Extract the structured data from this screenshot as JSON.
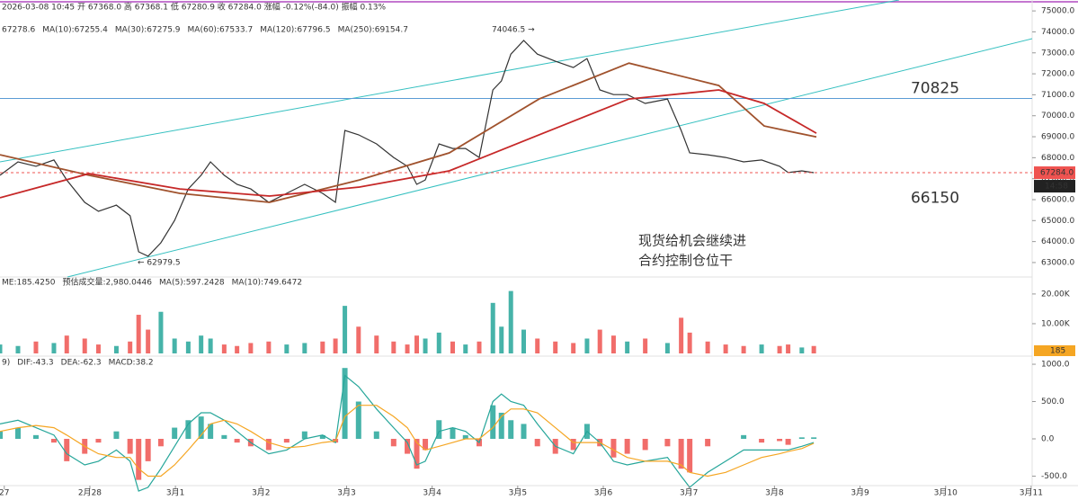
{
  "chart_data": [
    {
      "type": "line",
      "info": "2026-03-08 10:45  开 67368.0  高 67368.1  低 67280.9  收 67284.0  涨幅 -0.12%(-84.0)  振幅 0.13%",
      "legend": [
        {
          "text": "67278.6",
          "color": "#b0413e"
        },
        {
          "text": "MA(10):67255.4",
          "color": "#b0413e"
        },
        {
          "text": "MA(30):67275.9",
          "color": "#e58fb8"
        },
        {
          "text": "MA(60):67533.7",
          "color": "#3fb8c9"
        },
        {
          "text": "MA(120):67796.5",
          "color": "#a0522d"
        },
        {
          "text": "MA(250):69154.7",
          "color": "#c62828"
        }
      ],
      "xlim": [
        -0.05,
        11.98
      ],
      "ylim": [
        62440,
        75520
      ],
      "yticks": [
        {
          "value": 63000,
          "label": "63000.0"
        },
        {
          "value": 64000,
          "label": "64000.0"
        },
        {
          "value": 65000,
          "label": "65000.0"
        },
        {
          "value": 66000,
          "label": "66000.0"
        },
        {
          "value": 67000,
          "label": "67000.0"
        },
        {
          "value": 68000,
          "label": "68000.0"
        },
        {
          "value": 69000,
          "label": "69000.0"
        },
        {
          "value": 70000,
          "label": "70000.0"
        },
        {
          "value": 71000,
          "label": "71000.0"
        },
        {
          "value": 72000,
          "label": "72000.0"
        },
        {
          "value": 73000,
          "label": "73000.0"
        },
        {
          "value": 74000,
          "label": "74000.0"
        },
        {
          "value": 75000,
          "label": "75000.0"
        }
      ],
      "series": [
        {
          "name": "price",
          "color": "#333333",
          "x": [
            -0.05,
            0.16,
            0.37,
            0.58,
            0.73,
            0.94,
            1.1,
            1.31,
            1.47,
            1.57,
            1.68,
            1.83,
            1.99,
            2.15,
            2.3,
            2.41,
            2.57,
            2.72,
            2.88,
            3.09,
            3.3,
            3.51,
            3.72,
            3.87,
            3.98,
            4.14,
            4.35,
            4.55,
            4.71,
            4.82,
            4.92,
            5.08,
            5.24,
            5.39,
            5.55,
            5.71,
            5.81,
            5.92,
            6.07,
            6.23,
            6.44,
            6.65,
            6.81,
            6.96,
            7.12,
            7.28,
            7.49,
            7.75,
            7.91,
            8.01,
            8.22,
            8.43,
            8.64,
            8.85,
            9.06,
            9.16,
            9.32,
            9.46
          ],
          "values": [
            67160,
            67800,
            67590,
            67890,
            66940,
            65870,
            65440,
            65740,
            65230,
            63510,
            63300,
            63940,
            65010,
            66510,
            67160,
            67800,
            67160,
            66730,
            66510,
            65870,
            66300,
            66730,
            66300,
            65870,
            69300,
            69090,
            68660,
            68010,
            67590,
            66730,
            66940,
            68660,
            68440,
            68440,
            68010,
            71230,
            71660,
            72940,
            73590,
            72940,
            72600,
            72300,
            72730,
            71230,
            71010,
            71010,
            70590,
            70800,
            69300,
            68230,
            68140,
            68010,
            67800,
            67890,
            67590,
            67290,
            67370,
            67284
          ]
        },
        {
          "name": "MA(120)",
          "color": "#a0522d",
          "x": [
            -0.05,
            0.99,
            2.05,
            3.1,
            4.15,
            5.2,
            6.25,
            7.3,
            8.35,
            8.88,
            9.49
          ],
          "values": [
            68140,
            67160,
            66300,
            65870,
            66940,
            68230,
            70800,
            72510,
            71440,
            69510,
            68990
          ]
        },
        {
          "name": "MA(250)",
          "color": "#c62828",
          "x": [
            -0.05,
            0.99,
            2.05,
            3.1,
            4.15,
            5.2,
            6.25,
            7.3,
            8.35,
            8.88,
            9.49
          ],
          "values": [
            66090,
            67240,
            66510,
            66170,
            66600,
            67370,
            69090,
            70800,
            71230,
            70590,
            69170
          ]
        }
      ],
      "levels": [
        {
          "value": 70825,
          "line": true,
          "color": "#5b9bd5"
        },
        {
          "value": 66150,
          "line": false,
          "color": "#5b9bd5"
        }
      ],
      "last_price": {
        "value": 67284,
        "label": "67284.0"
      },
      "countdown": "14:58",
      "annotations": [
        "74046.5 →",
        "← 62979.5",
        "现货给机会继续进",
        "合约控制仓位干"
      ]
    },
    {
      "type": "bar",
      "legend": [
        {
          "text": "ME:185.4250",
          "color": "#333333"
        },
        {
          "text": "预估成交量:2,980.0446",
          "color": "#333333"
        },
        {
          "text": "MA(5):597.2428",
          "color": "#26a69a"
        },
        {
          "text": "MA(10):749.6472",
          "color": "#f5a623"
        }
      ],
      "xlim": [
        -0.05,
        11.98
      ],
      "ylim": [
        0,
        23600
      ],
      "yticks": [
        {
          "value": 10000,
          "label": "10.00K"
        },
        {
          "value": 20000,
          "label": "20.00K"
        }
      ],
      "up_color": "#26a69a",
      "down_color": "#ef5350",
      "x": [
        -0.05,
        0.16,
        0.37,
        0.58,
        0.73,
        0.94,
        1.1,
        1.31,
        1.47,
        1.57,
        1.68,
        1.83,
        1.99,
        2.15,
        2.3,
        2.41,
        2.57,
        2.72,
        2.88,
        3.09,
        3.3,
        3.51,
        3.72,
        3.87,
        3.98,
        4.14,
        4.35,
        4.55,
        4.71,
        4.82,
        4.92,
        5.08,
        5.24,
        5.39,
        5.55,
        5.71,
        5.81,
        5.92,
        6.07,
        6.23,
        6.44,
        6.65,
        6.81,
        6.96,
        7.12,
        7.28,
        7.49,
        7.75,
        7.91,
        8.01,
        8.22,
        8.43,
        8.64,
        8.85,
        9.06,
        9.16,
        9.32,
        9.46
      ],
      "values": [
        3000,
        2500,
        4000,
        3500,
        6000,
        5000,
        3000,
        2500,
        4000,
        13000,
        8000,
        14000,
        5000,
        4000,
        6000,
        5000,
        3000,
        2500,
        3500,
        4000,
        3000,
        3500,
        4000,
        5000,
        16000,
        9000,
        6000,
        4000,
        3000,
        6000,
        5000,
        7000,
        4000,
        3000,
        4000,
        17000,
        9000,
        21000,
        8000,
        5000,
        4000,
        3500,
        5000,
        8000,
        6000,
        4000,
        5000,
        3500,
        12000,
        7000,
        4000,
        3000,
        2500,
        3000,
        2500,
        3000,
        2000,
        2500
      ],
      "last_label": "185"
    },
    {
      "type": "macd",
      "legend": [
        {
          "text": "9)",
          "color": "#333333"
        },
        {
          "text": "DIF:-43.3",
          "color": "#26a69a"
        },
        {
          "text": "DEA:-62.3",
          "color": "#f5a623"
        },
        {
          "text": "MACD:38.2",
          "color": "#333333"
        }
      ],
      "xlim": [
        -0.05,
        11.98
      ],
      "ylim": [
        -627,
        1085
      ],
      "yticks": [
        {
          "value": -500,
          "label": "-500.0"
        },
        {
          "value": 0,
          "label": "0.0"
        },
        {
          "value": 500,
          "label": "500.0"
        },
        {
          "value": 1000,
          "label": "1000.0"
        }
      ],
      "xticks": [
        {
          "value": 0,
          "label": "27"
        },
        {
          "value": 1,
          "label": "2月28"
        },
        {
          "value": 2,
          "label": "3月1"
        },
        {
          "value": 3,
          "label": "3月2"
        },
        {
          "value": 4,
          "label": "3月3"
        },
        {
          "value": 5,
          "label": "3月4"
        },
        {
          "value": 6,
          "label": "3月5"
        },
        {
          "value": 7,
          "label": "3月6"
        },
        {
          "value": 8,
          "label": "3月7"
        },
        {
          "value": 9,
          "label": "3月8"
        },
        {
          "value": 10,
          "label": "3月9"
        },
        {
          "value": 11,
          "label": "3月10"
        },
        {
          "value": 12,
          "label": "3月11"
        }
      ],
      "x": [
        -0.05,
        0.16,
        0.37,
        0.58,
        0.73,
        0.94,
        1.1,
        1.31,
        1.47,
        1.57,
        1.68,
        1.83,
        1.99,
        2.15,
        2.3,
        2.41,
        2.57,
        2.72,
        2.88,
        3.09,
        3.3,
        3.51,
        3.72,
        3.87,
        3.98,
        4.14,
        4.35,
        4.55,
        4.71,
        4.82,
        4.92,
        5.08,
        5.24,
        5.39,
        5.55,
        5.71,
        5.81,
        5.92,
        6.07,
        6.23,
        6.44,
        6.65,
        6.81,
        6.96,
        7.12,
        7.28,
        7.49,
        7.75,
        7.91,
        8.01,
        8.22,
        8.43,
        8.64,
        8.85,
        9.06,
        9.16,
        9.32,
        9.46
      ],
      "series": [
        {
          "name": "MACD",
          "up_color": "#26a69a",
          "down_color": "#ef5350",
          "values": [
            100,
            150,
            50,
            -50,
            -300,
            -200,
            -50,
            100,
            -200,
            -550,
            -300,
            -100,
            150,
            250,
            300,
            200,
            50,
            -50,
            -100,
            -150,
            -50,
            100,
            50,
            -50,
            950,
            500,
            100,
            -100,
            -200,
            -400,
            -150,
            250,
            150,
            50,
            -100,
            450,
            350,
            250,
            200,
            -100,
            -200,
            -150,
            200,
            -100,
            -250,
            -200,
            -150,
            -100,
            -400,
            -450,
            -100,
            0,
            50,
            -50,
            -30,
            -80,
            20,
            20
          ]
        },
        {
          "name": "DIF",
          "color": "#26a69a",
          "values": [
            200,
            250,
            150,
            50,
            -200,
            -350,
            -300,
            -150,
            -300,
            -700,
            -650,
            -400,
            -100,
            200,
            350,
            350,
            250,
            100,
            -50,
            -200,
            -150,
            0,
            50,
            -50,
            850,
            700,
            400,
            150,
            -50,
            -350,
            -300,
            100,
            150,
            100,
            -50,
            500,
            600,
            500,
            450,
            200,
            -100,
            -200,
            100,
            -50,
            -300,
            -350,
            -300,
            -250,
            -500,
            -650,
            -450,
            -300,
            -150,
            -150,
            -150,
            -150,
            -100,
            -50
          ]
        },
        {
          "name": "DEA",
          "color": "#f5a623",
          "values": [
            100,
            150,
            180,
            150,
            50,
            -100,
            -200,
            -250,
            -250,
            -400,
            -500,
            -500,
            -350,
            -150,
            50,
            200,
            250,
            200,
            100,
            -50,
            -120,
            -100,
            -50,
            -30,
            300,
            450,
            450,
            300,
            150,
            -50,
            -150,
            -100,
            -50,
            0,
            0,
            150,
            300,
            400,
            400,
            350,
            150,
            -50,
            -50,
            -50,
            -150,
            -250,
            -300,
            -300,
            -350,
            -450,
            -500,
            -450,
            -350,
            -250,
            -200,
            -170,
            -130,
            -60
          ]
        }
      ]
    }
  ]
}
